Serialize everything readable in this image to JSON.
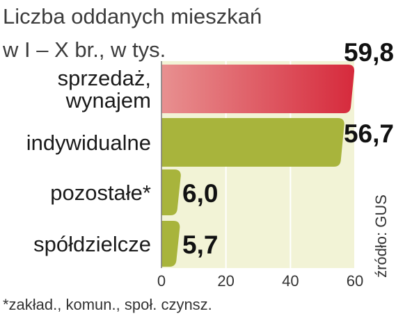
{
  "title_line1": "Liczba oddanych mieszkań",
  "title_line2": "w I – X br., w tys.",
  "footnote": "*zakład., komun., społ. czynsz.",
  "source": "źródło: GUS",
  "colors": {
    "highlight_bar": "#d62a3c",
    "highlight_bar_light": "#e89090",
    "bar": "#a8b43c",
    "bar_light": "#dfe3a8",
    "plot_bg": "#f2f3d6",
    "highlight_value": "#c8102e",
    "value": "#111111"
  },
  "chart_data": {
    "type": "bar",
    "orientation": "horizontal",
    "categories": [
      "sprzedaż, wynajem",
      "indywidualne",
      "pozostałe*",
      "spółdzielcze"
    ],
    "category_lines": [
      [
        "sprzedaż,",
        "wynajem"
      ],
      [
        "indywidualne"
      ],
      [
        "pozostałe*"
      ],
      [
        "spółdzielcze"
      ]
    ],
    "values": [
      59.8,
      56.7,
      6.0,
      5.7
    ],
    "value_labels": [
      "59,8",
      "56,7",
      "6,0",
      "5,7"
    ],
    "highlight_index": 0,
    "xlim": [
      0,
      60
    ],
    "xticks": [
      0,
      20,
      40,
      60
    ],
    "grid": true
  }
}
